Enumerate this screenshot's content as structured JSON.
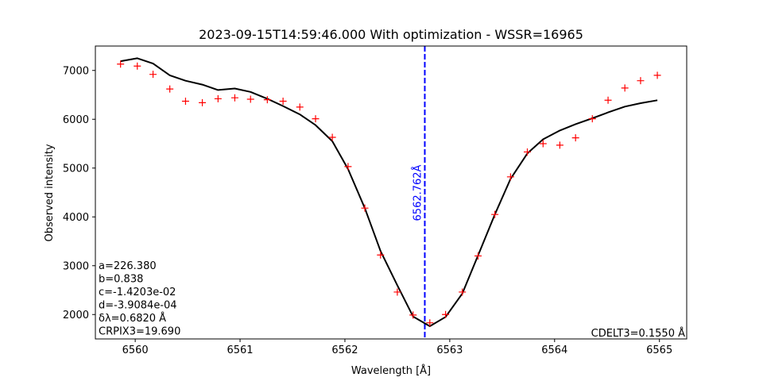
{
  "chart_data": {
    "type": "line",
    "title": "2023-09-15T14:59:46.000 With optimization - WSSR=16965",
    "xlabel": "Wavelength [Å]",
    "ylabel": "Observed intensity",
    "xlim": [
      6559.62,
      6565.26
    ],
    "ylim": [
      1500,
      7500
    ],
    "xticks": [
      6560,
      6561,
      6562,
      6563,
      6564,
      6565
    ],
    "yticks": [
      2000,
      3000,
      4000,
      5000,
      6000,
      7000
    ],
    "grid": false,
    "colors": {
      "observed": "#ff0000",
      "fit": "#000000",
      "center_line": "#0000ff"
    },
    "observed": {
      "marker": "+",
      "x": [
        6559.86,
        6560.02,
        6560.17,
        6560.33,
        6560.48,
        6560.64,
        6560.79,
        6560.95,
        6561.1,
        6561.26,
        6561.41,
        6561.57,
        6561.72,
        6561.88,
        6562.03,
        6562.19,
        6562.34,
        6562.5,
        6562.65,
        6562.81,
        6562.96,
        6563.12,
        6563.27,
        6563.43,
        6563.58,
        6563.74,
        6563.89,
        6564.05,
        6564.2,
        6564.36,
        6564.51,
        6564.67,
        6564.82,
        6564.98
      ],
      "y": [
        7130,
        7090,
        6920,
        6620,
        6370,
        6340,
        6420,
        6440,
        6410,
        6400,
        6370,
        6250,
        6010,
        5630,
        5030,
        4180,
        3220,
        2460,
        1990,
        1830,
        2000,
        2460,
        3200,
        4050,
        4820,
        5330,
        5500,
        5470,
        5620,
        6010,
        6390,
        6640,
        6790,
        6900
      ]
    },
    "fit": {
      "x": [
        6559.86,
        6560.02,
        6560.17,
        6560.33,
        6560.48,
        6560.64,
        6560.79,
        6560.95,
        6561.1,
        6561.26,
        6561.41,
        6561.57,
        6561.72,
        6561.88,
        6562.03,
        6562.19,
        6562.34,
        6562.5,
        6562.65,
        6562.81,
        6562.96,
        6563.12,
        6563.27,
        6563.43,
        6563.58,
        6563.74,
        6563.89,
        6564.05,
        6564.2,
        6564.36,
        6564.51,
        6564.67,
        6564.82,
        6564.98
      ],
      "y": [
        7190,
        7250,
        7140,
        6900,
        6790,
        6710,
        6600,
        6630,
        6560,
        6420,
        6270,
        6100,
        5880,
        5550,
        4980,
        4180,
        3300,
        2600,
        1960,
        1760,
        1950,
        2430,
        3210,
        4050,
        4780,
        5300,
        5590,
        5770,
        5900,
        6020,
        6140,
        6260,
        6330,
        6390
      ]
    },
    "center_line": {
      "x": 6562.762,
      "label": "6562.762Å"
    },
    "annotations_left": [
      "a=226.380",
      "b=0.838",
      "c=-1.4203e-02",
      "d=-3.9084e-04",
      "δλ=0.6820 Å",
      "CRPIX3=19.690"
    ],
    "annotation_right": "CDELT3=0.1550 Å"
  }
}
